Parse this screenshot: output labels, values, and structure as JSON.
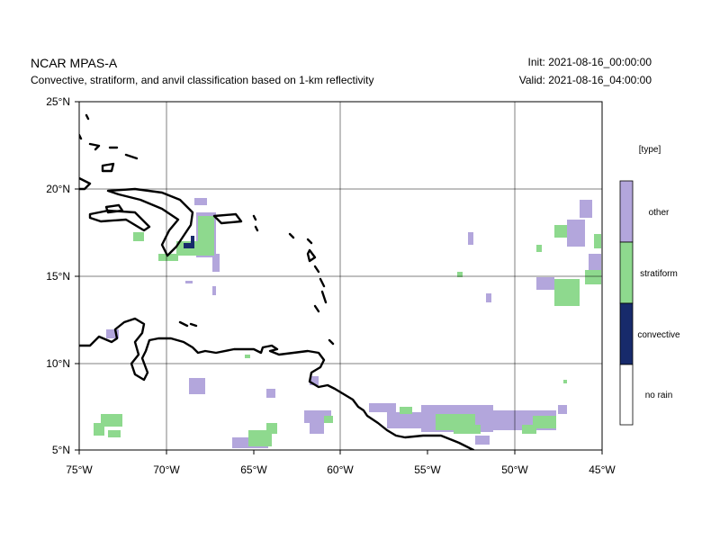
{
  "header": {
    "title": "NCAR MPAS-A",
    "subtitle": "Convective, stratiform, and anvil classification based on 1-km reflectivity",
    "init": "Init: 2021-08-16_00:00:00",
    "valid": "Valid: 2021-08-16_04:00:00"
  },
  "map": {
    "lon_range": [
      -75,
      -45
    ],
    "lat_range": [
      5,
      25
    ],
    "lon_ticks": [
      {
        "value": -75,
        "label": "75°W"
      },
      {
        "value": -70,
        "label": "70°W"
      },
      {
        "value": -65,
        "label": "65°W"
      },
      {
        "value": -60,
        "label": "60°W"
      },
      {
        "value": -55,
        "label": "55°W"
      },
      {
        "value": -50,
        "label": "50°W"
      },
      {
        "value": -45,
        "label": "45°W"
      }
    ],
    "lat_ticks": [
      {
        "value": 25,
        "label": "25°N"
      },
      {
        "value": 20,
        "label": "20°N"
      },
      {
        "value": 15,
        "label": "15°N"
      },
      {
        "value": 10,
        "label": "10°N"
      },
      {
        "value": 5,
        "label": "5°N"
      }
    ],
    "gridlines": true
  },
  "colorbar": {
    "title": "[type]",
    "classes": [
      {
        "label": "other",
        "color": "#b3a6dc"
      },
      {
        "label": "stratiform",
        "color": "#8ed98e"
      },
      {
        "label": "convective",
        "color": "#172a6b"
      },
      {
        "label": "no rain",
        "color": "#ffffff"
      }
    ]
  }
}
